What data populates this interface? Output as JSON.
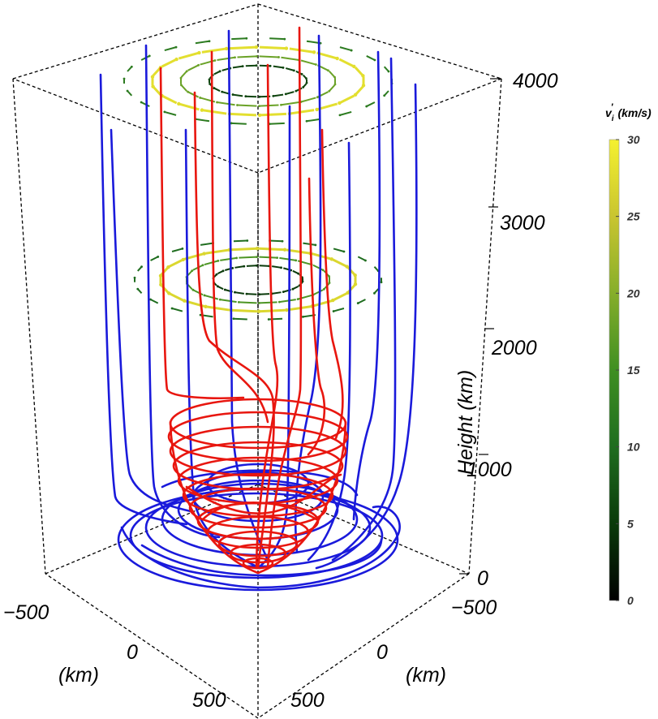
{
  "chart_data": {
    "type": "3d-streamlines",
    "z_axis": {
      "label": "Height (km)",
      "ticks": [
        "0",
        "1000",
        "2000",
        "3000",
        "4000"
      ],
      "range": [
        0,
        4000
      ]
    },
    "x_axis": {
      "label": "(km)",
      "ticks": [
        "−500",
        "0",
        "500"
      ]
    },
    "y_axis": {
      "label": "(km)",
      "ticks": [
        "−500",
        "0",
        "500"
      ]
    },
    "colorbar": {
      "title_main": "v",
      "title_sub": "i",
      "title_prime": "'",
      "title_unit": "(km/s)",
      "ticks": [
        "0",
        "5",
        "10",
        "15",
        "20",
        "25",
        "30"
      ],
      "range": [
        0,
        30
      ],
      "colors": [
        "#000000",
        "#0a3a0a",
        "#1f6d1f",
        "#3f8f22",
        "#86ae2a",
        "#c9c52f",
        "#f5f12f"
      ]
    },
    "series": [
      {
        "color": "#1a1adb"
      },
      {
        "color": "#e8160f"
      }
    ],
    "velocity_slices_heights": [
      2500,
      4000
    ],
    "field_line_colors": {
      "blue": "#1a1adb",
      "red": "#e8160f"
    }
  }
}
